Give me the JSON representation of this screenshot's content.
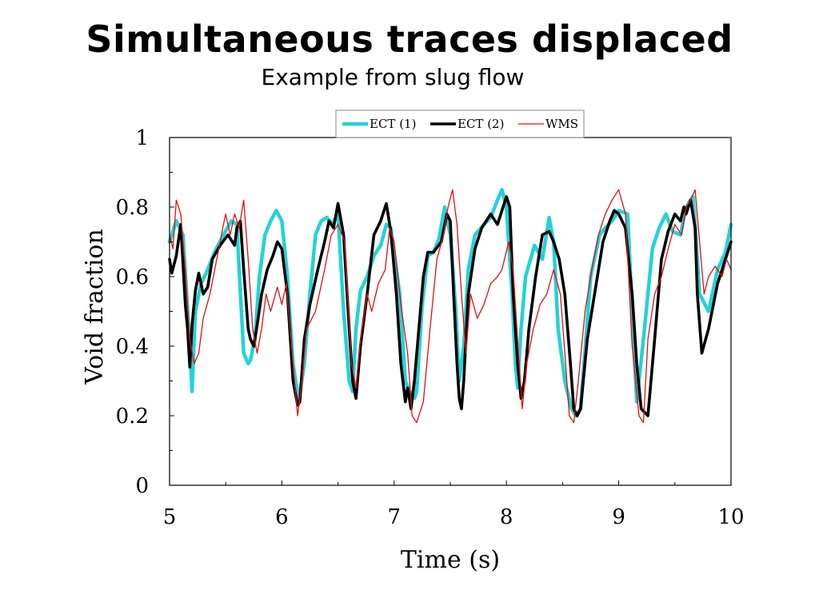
{
  "slide": {
    "title": "Simultaneous traces displaced",
    "subtitle": "Example from slug flow"
  },
  "chart_data": {
    "type": "line",
    "xlabel": "Time (s)",
    "ylabel": "Void fraction",
    "xlim": [
      5,
      10
    ],
    "ylim": [
      0,
      1
    ],
    "x_ticks": [
      5,
      6,
      7,
      8,
      9,
      10
    ],
    "x_tick_labels": [
      "5",
      "6",
      "7",
      "8",
      "9",
      "10"
    ],
    "y_ticks": [
      0,
      0.2,
      0.4,
      0.6,
      0.8,
      1
    ],
    "y_tick_labels": [
      "0",
      "0.2",
      "0.4",
      "0.6",
      "0.8",
      "1"
    ],
    "grid": false,
    "legend_position": "top-center",
    "series": [
      {
        "name": "ECT (1)",
        "color": "#22d3d8",
        "x": [
          5.0,
          5.06,
          5.12,
          5.18,
          5.2,
          5.23,
          5.28,
          5.34,
          5.4,
          5.48,
          5.55,
          5.6,
          5.62,
          5.66,
          5.7,
          5.72,
          5.76,
          5.8,
          5.85,
          5.9,
          5.95,
          6.0,
          6.05,
          6.1,
          6.15,
          6.2,
          6.25,
          6.3,
          6.35,
          6.4,
          6.45,
          6.5,
          6.55,
          6.6,
          6.63,
          6.66,
          6.7,
          6.76,
          6.82,
          6.88,
          6.93,
          6.97,
          7.05,
          7.1,
          7.15,
          7.18,
          7.2,
          7.25,
          7.3,
          7.35,
          7.4,
          7.45,
          7.5,
          7.55,
          7.58,
          7.62,
          7.66,
          7.72,
          7.8,
          7.86,
          7.92,
          7.96,
          8.0,
          8.05,
          8.08,
          8.1,
          8.13,
          8.17,
          8.25,
          8.32,
          8.38,
          8.42,
          8.46,
          8.52,
          8.58,
          8.62,
          8.66,
          8.75,
          8.83,
          8.88,
          8.94,
          9.0,
          9.08,
          9.12,
          9.16,
          9.22,
          9.3,
          9.36,
          9.42,
          9.48,
          9.55,
          9.6,
          9.66,
          9.68,
          9.72,
          9.8,
          9.88,
          9.95,
          10.0
        ],
        "values": [
          0.7,
          0.76,
          0.72,
          0.4,
          0.27,
          0.5,
          0.58,
          0.62,
          0.67,
          0.72,
          0.76,
          0.75,
          0.62,
          0.38,
          0.35,
          0.36,
          0.42,
          0.6,
          0.72,
          0.76,
          0.79,
          0.76,
          0.6,
          0.35,
          0.24,
          0.35,
          0.55,
          0.72,
          0.76,
          0.77,
          0.75,
          0.78,
          0.5,
          0.3,
          0.27,
          0.45,
          0.56,
          0.6,
          0.66,
          0.69,
          0.75,
          0.74,
          0.55,
          0.3,
          0.26,
          0.25,
          0.27,
          0.52,
          0.66,
          0.67,
          0.71,
          0.8,
          0.72,
          0.5,
          0.3,
          0.4,
          0.62,
          0.72,
          0.75,
          0.77,
          0.82,
          0.85,
          0.8,
          0.55,
          0.35,
          0.28,
          0.45,
          0.6,
          0.69,
          0.65,
          0.77,
          0.7,
          0.45,
          0.3,
          0.22,
          0.2,
          0.22,
          0.6,
          0.72,
          0.74,
          0.76,
          0.79,
          0.78,
          0.5,
          0.24,
          0.42,
          0.68,
          0.74,
          0.78,
          0.73,
          0.72,
          0.8,
          0.83,
          0.75,
          0.55,
          0.5,
          0.62,
          0.67,
          0.75
        ]
      },
      {
        "name": "ECT (2)",
        "color": "#000000",
        "x": [
          5.0,
          5.02,
          5.06,
          5.1,
          5.14,
          5.16,
          5.18,
          5.2,
          5.23,
          5.26,
          5.3,
          5.34,
          5.38,
          5.45,
          5.52,
          5.58,
          5.6,
          5.63,
          5.66,
          5.7,
          5.72,
          5.75,
          5.78,
          5.82,
          5.87,
          5.92,
          5.96,
          6.0,
          6.05,
          6.1,
          6.14,
          6.16,
          6.2,
          6.25,
          6.32,
          6.38,
          6.42,
          6.46,
          6.5,
          6.55,
          6.6,
          6.63,
          6.66,
          6.7,
          6.76,
          6.82,
          6.88,
          6.93,
          6.97,
          7.02,
          7.06,
          7.1,
          7.12,
          7.15,
          7.18,
          7.22,
          7.26,
          7.3,
          7.35,
          7.42,
          7.47,
          7.5,
          7.53,
          7.56,
          7.58,
          7.6,
          7.62,
          7.66,
          7.72,
          7.78,
          7.82,
          7.86,
          7.92,
          7.96,
          8.0,
          8.03,
          8.06,
          8.1,
          8.13,
          8.16,
          8.2,
          8.26,
          8.32,
          8.38,
          8.42,
          8.47,
          8.52,
          8.57,
          8.6,
          8.63,
          8.66,
          8.72,
          8.8,
          8.86,
          8.92,
          8.96,
          9.0,
          9.06,
          9.12,
          9.16,
          9.2,
          9.26,
          9.32,
          9.38,
          9.44,
          9.5,
          9.55,
          9.58,
          9.6,
          9.64,
          9.68,
          9.7,
          9.74,
          9.8,
          9.88,
          9.95,
          10.0
        ],
        "values": [
          0.65,
          0.61,
          0.66,
          0.75,
          0.52,
          0.45,
          0.34,
          0.46,
          0.56,
          0.61,
          0.55,
          0.57,
          0.65,
          0.69,
          0.72,
          0.69,
          0.74,
          0.76,
          0.62,
          0.45,
          0.42,
          0.4,
          0.46,
          0.55,
          0.62,
          0.66,
          0.7,
          0.68,
          0.55,
          0.3,
          0.23,
          0.24,
          0.42,
          0.52,
          0.62,
          0.7,
          0.76,
          0.74,
          0.81,
          0.72,
          0.45,
          0.3,
          0.25,
          0.4,
          0.55,
          0.72,
          0.76,
          0.81,
          0.73,
          0.55,
          0.35,
          0.24,
          0.28,
          0.22,
          0.3,
          0.45,
          0.6,
          0.67,
          0.67,
          0.7,
          0.78,
          0.76,
          0.55,
          0.35,
          0.25,
          0.22,
          0.3,
          0.55,
          0.68,
          0.74,
          0.76,
          0.78,
          0.75,
          0.79,
          0.83,
          0.8,
          0.55,
          0.35,
          0.25,
          0.3,
          0.45,
          0.6,
          0.72,
          0.73,
          0.7,
          0.65,
          0.55,
          0.35,
          0.22,
          0.2,
          0.22,
          0.42,
          0.58,
          0.7,
          0.76,
          0.79,
          0.78,
          0.74,
          0.55,
          0.35,
          0.22,
          0.2,
          0.42,
          0.65,
          0.73,
          0.78,
          0.76,
          0.8,
          0.78,
          0.82,
          0.74,
          0.55,
          0.38,
          0.45,
          0.58,
          0.65,
          0.7
        ]
      },
      {
        "name": "WMS",
        "color": "#e01010",
        "x": [
          5.0,
          5.03,
          5.06,
          5.1,
          5.14,
          5.18,
          5.22,
          5.26,
          5.3,
          5.36,
          5.42,
          5.48,
          5.5,
          5.54,
          5.58,
          5.62,
          5.66,
          5.7,
          5.74,
          5.78,
          5.82,
          5.86,
          5.9,
          5.96,
          6.0,
          6.04,
          6.1,
          6.14,
          6.18,
          6.22,
          6.3,
          6.38,
          6.44,
          6.5,
          6.56,
          6.62,
          6.66,
          6.7,
          6.76,
          6.8,
          6.86,
          6.92,
          6.96,
          7.0,
          7.06,
          7.12,
          7.16,
          7.2,
          7.26,
          7.32,
          7.38,
          7.44,
          7.48,
          7.52,
          7.56,
          7.6,
          7.64,
          7.68,
          7.74,
          7.8,
          7.86,
          7.92,
          7.96,
          8.02,
          8.06,
          8.1,
          8.14,
          8.18,
          8.24,
          8.3,
          8.36,
          8.42,
          8.48,
          8.52,
          8.56,
          8.6,
          8.64,
          8.7,
          8.76,
          8.82,
          8.88,
          8.94,
          9.0,
          9.06,
          9.12,
          9.18,
          9.22,
          9.26,
          9.32,
          9.38,
          9.44,
          9.5,
          9.56,
          9.6,
          9.64,
          9.68,
          9.72,
          9.76,
          9.8,
          9.86,
          9.92,
          9.96,
          10.0
        ],
        "values": [
          0.72,
          0.68,
          0.82,
          0.78,
          0.62,
          0.42,
          0.35,
          0.38,
          0.48,
          0.55,
          0.65,
          0.75,
          0.78,
          0.72,
          0.78,
          0.74,
          0.82,
          0.65,
          0.45,
          0.38,
          0.45,
          0.55,
          0.5,
          0.57,
          0.52,
          0.58,
          0.35,
          0.2,
          0.3,
          0.45,
          0.5,
          0.62,
          0.72,
          0.75,
          0.7,
          0.35,
          0.28,
          0.42,
          0.55,
          0.5,
          0.58,
          0.62,
          0.74,
          0.7,
          0.52,
          0.38,
          0.2,
          0.18,
          0.24,
          0.45,
          0.65,
          0.72,
          0.8,
          0.85,
          0.75,
          0.55,
          0.38,
          0.55,
          0.48,
          0.52,
          0.58,
          0.6,
          0.62,
          0.7,
          0.62,
          0.42,
          0.22,
          0.35,
          0.45,
          0.52,
          0.55,
          0.62,
          0.55,
          0.38,
          0.2,
          0.18,
          0.3,
          0.5,
          0.62,
          0.72,
          0.78,
          0.82,
          0.85,
          0.78,
          0.4,
          0.2,
          0.18,
          0.42,
          0.55,
          0.6,
          0.68,
          0.75,
          0.72,
          0.8,
          0.82,
          0.85,
          0.7,
          0.55,
          0.6,
          0.63,
          0.6,
          0.65,
          0.62
        ]
      }
    ]
  }
}
